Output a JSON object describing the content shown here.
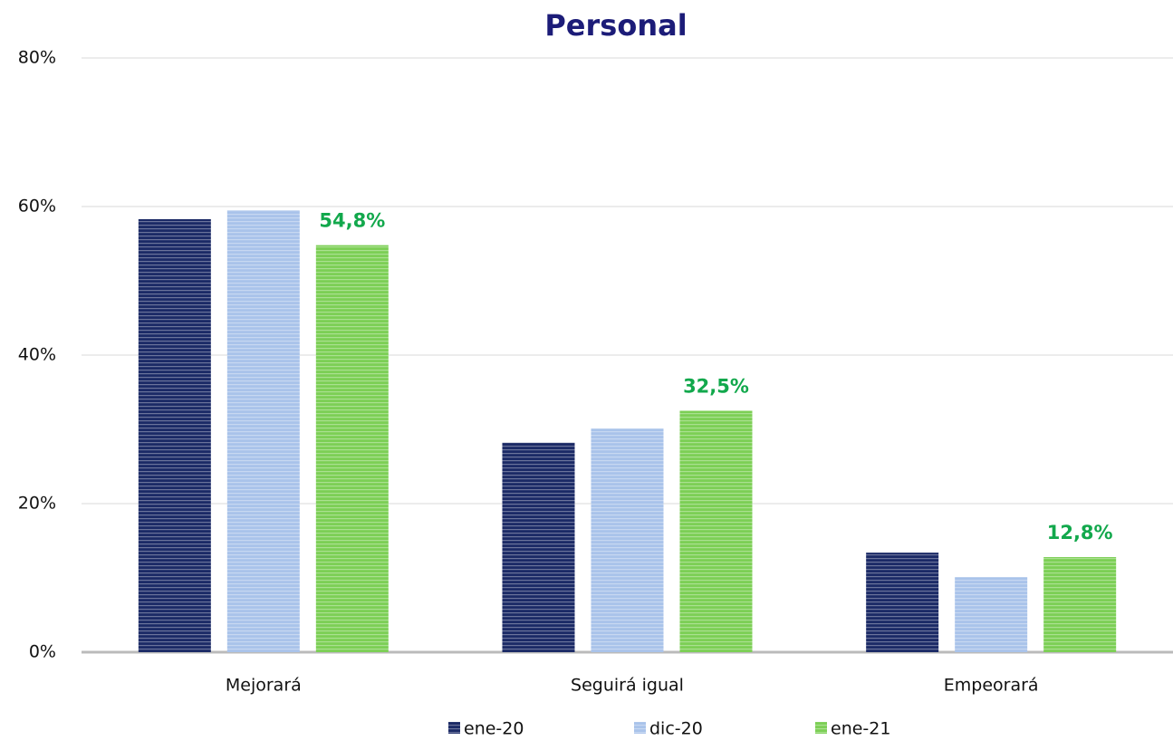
{
  "chart_data": {
    "type": "bar",
    "title": "Personal",
    "categories": [
      "Mejorará",
      "Seguirá igual",
      "Empeorará"
    ],
    "series": [
      {
        "name": "ene-20",
        "color": "#1b2a66",
        "values": [
          58.3,
          28.2,
          13.4
        ]
      },
      {
        "name": "dic-20",
        "color": "#a9c3ea",
        "values": [
          59.5,
          30.1,
          10.1
        ]
      },
      {
        "name": "ene-21",
        "color": "#7ccf55",
        "values": [
          54.8,
          32.5,
          12.8
        ],
        "value_labels": [
          "54,8%",
          "32,5%",
          "12,8%"
        ]
      }
    ],
    "ylim": [
      0,
      80
    ],
    "yticks": [
      {
        "value": 0,
        "label": "0%"
      },
      {
        "value": 20,
        "label": "20%"
      },
      {
        "value": 40,
        "label": "40%"
      },
      {
        "value": 60,
        "label": "60%"
      },
      {
        "value": 80,
        "label": "80%"
      }
    ],
    "grid": true,
    "legend": "bottom"
  }
}
